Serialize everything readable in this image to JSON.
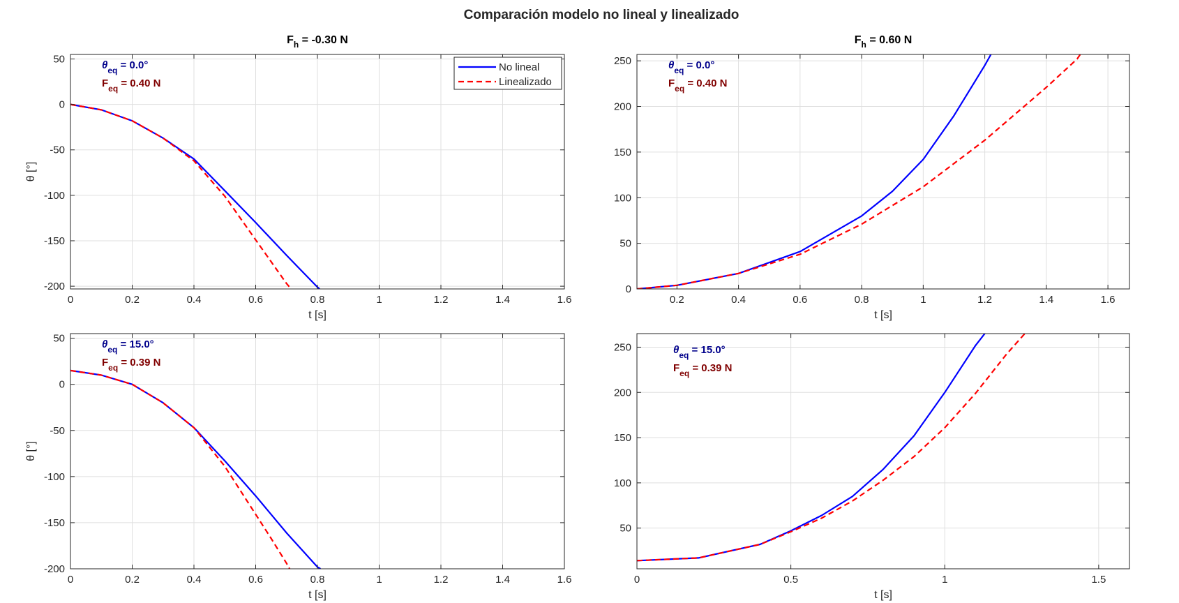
{
  "figure": {
    "title": "Comparación modelo no lineal y linealizado"
  },
  "legend": {
    "entries": [
      "No lineal",
      "Linealizado"
    ]
  },
  "colors": {
    "nonlinear": "#0000FF",
    "linearized": "#FF0000",
    "theta_annot": "#00008B",
    "force_annot": "#800000"
  },
  "chart_data": [
    {
      "type": "line",
      "title": "F_h = -0.30 N",
      "title_parts": {
        "main": "F",
        "sub": "h",
        "rest": " = -0.30 N"
      },
      "xlabel": "t [s]",
      "ylabel": "θ [°]",
      "xlim": [
        0,
        1.6
      ],
      "ylim": [
        -203,
        55
      ],
      "xticks": [
        0,
        0.2,
        0.4,
        0.6,
        0.8,
        1,
        1.2,
        1.4,
        1.6
      ],
      "yticks": [
        -200,
        -150,
        -100,
        -50,
        0,
        50
      ],
      "grid": true,
      "legend_position": "top-right",
      "annotations": [
        {
          "symbol": "θ",
          "sub": "eq",
          "text": " = 0.0°"
        },
        {
          "symbol": "F",
          "sub": "eq",
          "text": " = 0.40 N"
        }
      ],
      "series": [
        {
          "name": "No lineal",
          "style": "solid",
          "x": [
            0,
            0.1,
            0.2,
            0.3,
            0.4,
            0.5,
            0.6,
            0.7,
            0.8,
            0.807
          ],
          "y": [
            0,
            -6,
            -18,
            -37,
            -60,
            -95,
            -130,
            -166,
            -201,
            -203
          ]
        },
        {
          "name": "Linealizado",
          "style": "dashed",
          "x": [
            0,
            0.1,
            0.2,
            0.3,
            0.4,
            0.5,
            0.6,
            0.65,
            0.7,
            0.715
          ],
          "y": [
            0,
            -6,
            -18,
            -37,
            -62,
            -101,
            -149,
            -173,
            -197,
            -203
          ]
        }
      ]
    },
    {
      "type": "line",
      "title": "F_h = 0.60 N",
      "title_parts": {
        "main": "F",
        "sub": "h",
        "rest": " = 0.60 N"
      },
      "xlabel": "t [s]",
      "ylabel": "",
      "xlim": [
        0.07,
        1.67
      ],
      "ylim": [
        0,
        257
      ],
      "xticks": [
        0.2,
        0.4,
        0.6,
        0.8,
        1,
        1.2,
        1.4,
        1.6
      ],
      "yticks": [
        0,
        50,
        100,
        150,
        200,
        250
      ],
      "grid": true,
      "annotations": [
        {
          "symbol": "θ",
          "sub": "eq",
          "text": " = 0.0°"
        },
        {
          "symbol": "F",
          "sub": "eq",
          "text": " = 0.40 N"
        }
      ],
      "series": [
        {
          "name": "No lineal",
          "style": "solid",
          "x": [
            0.07,
            0.2,
            0.4,
            0.6,
            0.8,
            0.9,
            1.0,
            1.1,
            1.2,
            1.22
          ],
          "y": [
            0,
            4,
            17,
            41,
            80,
            107,
            142,
            190,
            245,
            257
          ]
        },
        {
          "name": "Linealizado",
          "style": "dashed",
          "x": [
            0.07,
            0.2,
            0.4,
            0.6,
            0.8,
            1.0,
            1.2,
            1.4,
            1.5,
            1.51
          ],
          "y": [
            0,
            4,
            17,
            38,
            71,
            112,
            163,
            221,
            252,
            257
          ]
        }
      ]
    },
    {
      "type": "line",
      "title": "",
      "xlabel": "t [s]",
      "ylabel": "θ [°]",
      "xlim": [
        0,
        1.6
      ],
      "ylim": [
        -200,
        55
      ],
      "xticks": [
        0,
        0.2,
        0.4,
        0.6,
        0.8,
        1,
        1.2,
        1.4,
        1.6
      ],
      "yticks": [
        -200,
        -150,
        -100,
        -50,
        0,
        50
      ],
      "grid": true,
      "annotations": [
        {
          "symbol": "θ",
          "sub": "eq",
          "text": " = 15.0°"
        },
        {
          "symbol": "F",
          "sub": "eq",
          "text": " = 0.39 N"
        }
      ],
      "series": [
        {
          "name": "No lineal",
          "style": "solid",
          "x": [
            0,
            0.1,
            0.2,
            0.3,
            0.4,
            0.5,
            0.6,
            0.7,
            0.8,
            0.81
          ],
          "y": [
            15,
            10,
            0,
            -20,
            -47,
            -83,
            -121,
            -161,
            -198,
            -200
          ]
        },
        {
          "name": "Linealizado",
          "style": "dashed",
          "x": [
            0,
            0.1,
            0.2,
            0.3,
            0.4,
            0.5,
            0.6,
            0.65,
            0.7,
            0.71
          ],
          "y": [
            15,
            10,
            0,
            -20,
            -47,
            -89,
            -141,
            -167,
            -194,
            -200
          ]
        }
      ]
    },
    {
      "type": "line",
      "title": "",
      "xlabel": "t [s]",
      "ylabel": "",
      "xlim": [
        0,
        1.6
      ],
      "ylim": [
        5,
        265
      ],
      "xticks": [
        0,
        0.5,
        1,
        1.5
      ],
      "yticks": [
        50,
        100,
        150,
        200,
        250
      ],
      "grid": true,
      "annotations": [
        {
          "symbol": "θ",
          "sub": "eq",
          "text": " = 15.0°"
        },
        {
          "symbol": "F",
          "sub": "eq",
          "text": " = 0.39 N"
        }
      ],
      "series": [
        {
          "name": "No lineal",
          "style": "solid",
          "x": [
            0,
            0.2,
            0.4,
            0.5,
            0.6,
            0.7,
            0.8,
            0.9,
            1.0,
            1.1,
            1.13
          ],
          "y": [
            14,
            17,
            32,
            47,
            64,
            85,
            115,
            152,
            200,
            252,
            265
          ]
        },
        {
          "name": "Linealizado",
          "style": "dashed",
          "x": [
            0,
            0.2,
            0.4,
            0.5,
            0.6,
            0.7,
            0.8,
            0.9,
            1.0,
            1.1,
            1.2,
            1.26
          ],
          "y": [
            14,
            17,
            32,
            46,
            61,
            80,
            103,
            129,
            161,
            199,
            242,
            265
          ]
        }
      ]
    }
  ]
}
